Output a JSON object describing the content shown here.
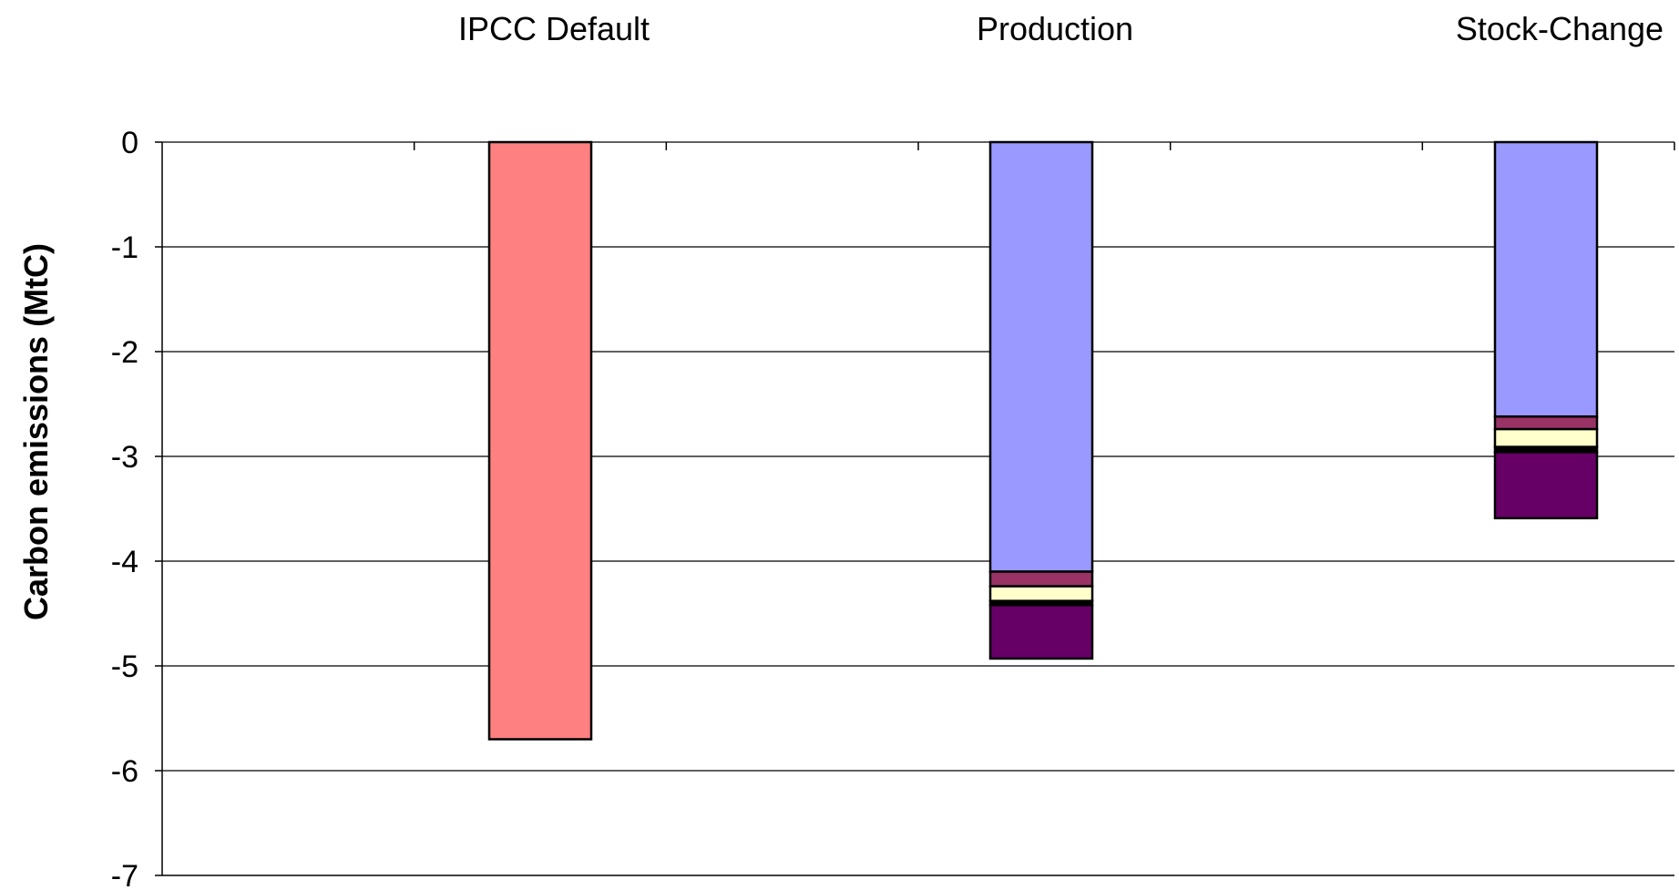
{
  "chart_data": {
    "type": "bar",
    "stacked": true,
    "categories": [
      "IPCC Default",
      "Production",
      "Stock-Change"
    ],
    "category_label_position": "top",
    "ylabel": "Carbon emissions (MtC)",
    "xlabel": "",
    "ylim": [
      -7,
      0
    ],
    "yticks": [
      0,
      -1,
      -2,
      -3,
      -4,
      -5,
      -6,
      -7
    ],
    "grid": true,
    "legend": "none",
    "series": [
      {
        "values": [
          -5.7,
          -4.1,
          -2.62
        ],
        "color": "#ff8080"
      },
      {
        "values": [
          0,
          -0.14,
          -0.12
        ],
        "color": "#993366"
      },
      {
        "values": [
          0,
          -0.14,
          -0.17
        ],
        "color": "#ffffcc"
      },
      {
        "values": [
          0,
          -0.04,
          -0.05
        ],
        "color": "#000000"
      },
      {
        "values": [
          0,
          -0.51,
          -0.63
        ],
        "color": "#660066"
      }
    ],
    "bar_colors_by_category": [
      [
        "#ff8080",
        "#993366",
        "#ffffcc",
        "#000000",
        "#660066"
      ],
      [
        "#9999ff",
        "#993366",
        "#ffffcc",
        "#000000",
        "#660066"
      ],
      [
        "#9999ff",
        "#993366",
        "#ffffcc",
        "#000000",
        "#660066"
      ]
    ]
  }
}
